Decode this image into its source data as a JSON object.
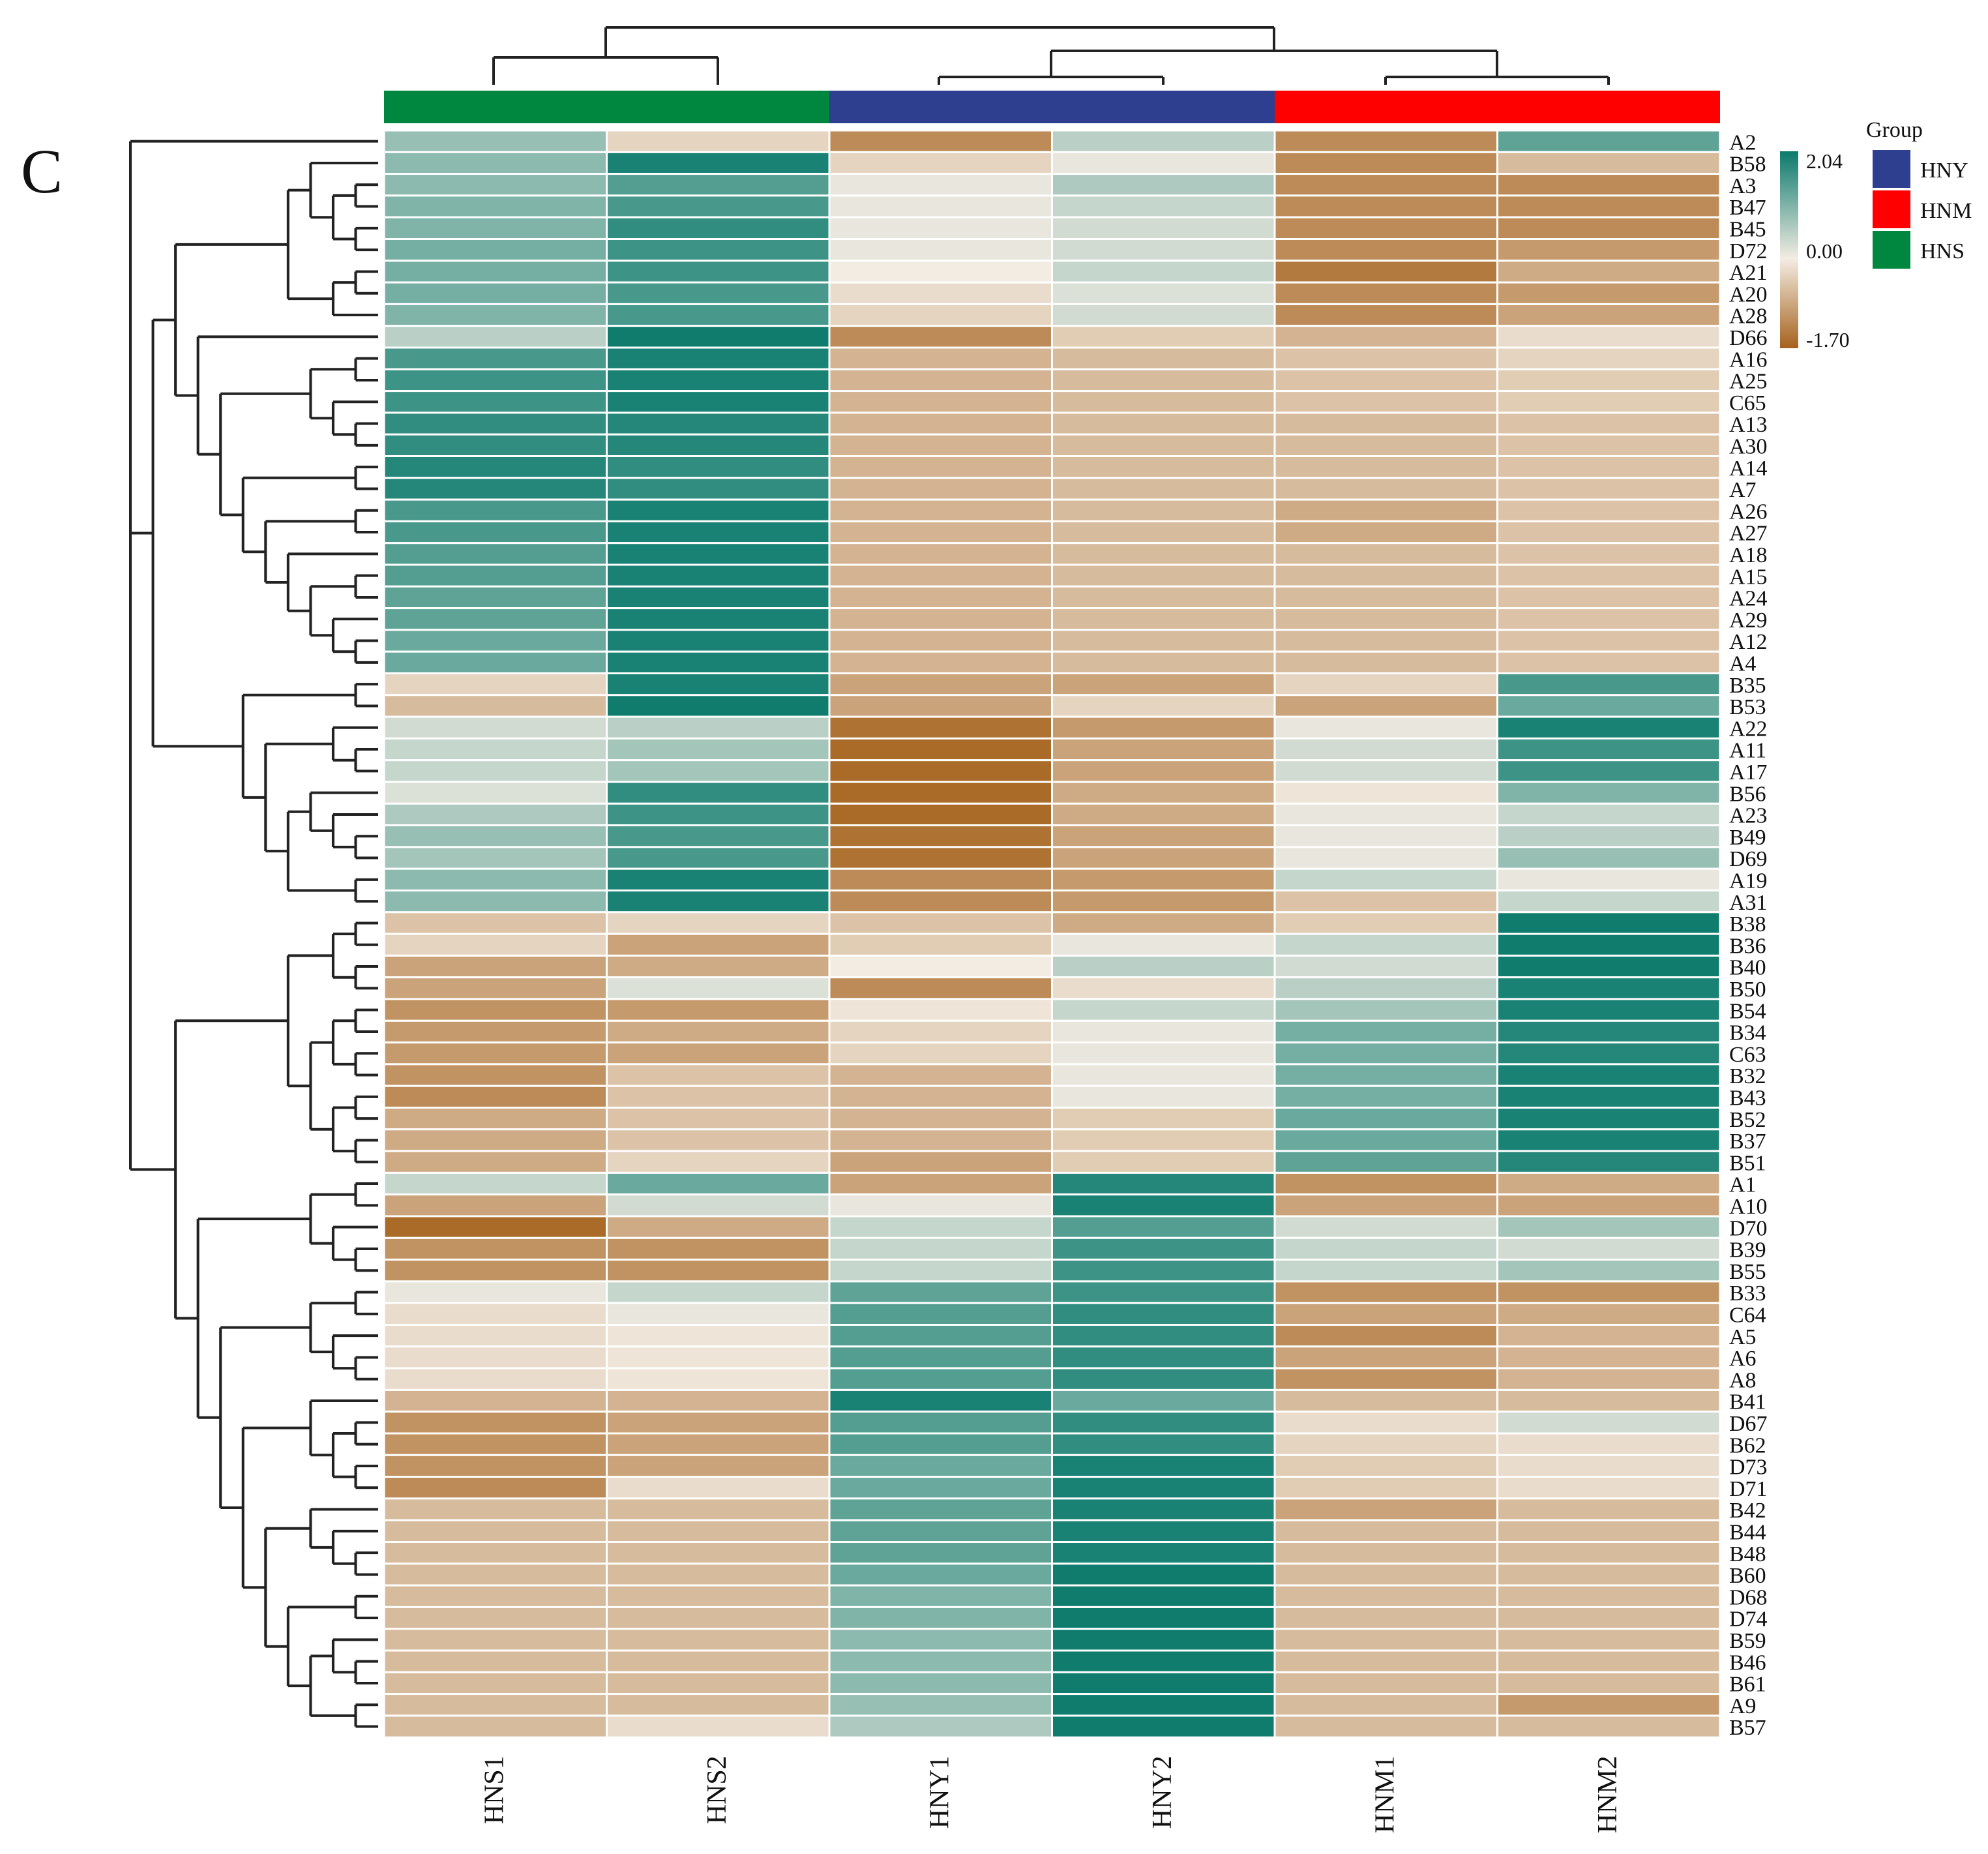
{
  "panel_label": "C",
  "chart_data": {
    "type": "heatmap",
    "columns": [
      "HNS1",
      "HNS2",
      "HNY1",
      "HNY2",
      "HNM1",
      "HNM2"
    ],
    "column_groups": [
      "HNS",
      "HNS",
      "HNY",
      "HNY",
      "HNM",
      "HNM"
    ],
    "rows": [
      "A2",
      "B58",
      "A3",
      "B47",
      "B45",
      "D72",
      "A21",
      "A20",
      "A28",
      "D66",
      "A16",
      "A25",
      "C65",
      "A13",
      "A30",
      "A14",
      "A7",
      "A26",
      "A27",
      "A18",
      "A15",
      "A24",
      "A29",
      "A12",
      "A4",
      "B35",
      "B53",
      "A22",
      "A11",
      "A17",
      "B56",
      "A23",
      "B49",
      "D69",
      "A19",
      "A31",
      "B38",
      "B36",
      "B40",
      "B50",
      "B54",
      "B34",
      "C63",
      "B32",
      "B43",
      "B52",
      "B37",
      "B51",
      "A1",
      "A10",
      "D70",
      "B39",
      "B55",
      "B33",
      "C64",
      "A5",
      "A6",
      "A8",
      "B41",
      "D67",
      "B62",
      "D73",
      "D71",
      "B42",
      "B44",
      "B48",
      "B60",
      "D68",
      "D74",
      "B59",
      "B46",
      "B61",
      "A9",
      "B57"
    ],
    "values": [
      [
        0.8,
        -0.3,
        -1.2,
        0.5,
        -1.2,
        1.3
      ],
      [
        0.9,
        1.9,
        -0.3,
        0.1,
        -1.2,
        -0.6
      ],
      [
        0.9,
        1.4,
        0.1,
        0.6,
        -1.2,
        -1.2
      ],
      [
        1.0,
        1.5,
        0.1,
        0.4,
        -1.2,
        -1.2
      ],
      [
        1.0,
        1.7,
        0.1,
        0.3,
        -1.2,
        -1.2
      ],
      [
        1.1,
        1.6,
        0.1,
        0.3,
        -1.2,
        -1.0
      ],
      [
        1.1,
        1.6,
        0.0,
        0.4,
        -1.4,
        -0.8
      ],
      [
        1.1,
        1.5,
        -0.2,
        0.2,
        -1.2,
        -1.0
      ],
      [
        1.0,
        1.5,
        -0.3,
        0.3,
        -1.2,
        -0.9
      ],
      [
        0.5,
        2.0,
        -1.2,
        -0.4,
        -0.7,
        -0.2
      ],
      [
        1.5,
        1.9,
        -0.7,
        -0.6,
        -0.5,
        -0.3
      ],
      [
        1.6,
        1.9,
        -0.7,
        -0.6,
        -0.5,
        -0.4
      ],
      [
        1.6,
        1.9,
        -0.7,
        -0.6,
        -0.5,
        -0.4
      ],
      [
        1.7,
        1.8,
        -0.7,
        -0.6,
        -0.6,
        -0.5
      ],
      [
        1.7,
        1.8,
        -0.7,
        -0.6,
        -0.6,
        -0.5
      ],
      [
        1.8,
        1.7,
        -0.7,
        -0.6,
        -0.6,
        -0.5
      ],
      [
        1.8,
        1.7,
        -0.7,
        -0.6,
        -0.6,
        -0.5
      ],
      [
        1.5,
        1.9,
        -0.7,
        -0.6,
        -0.8,
        -0.5
      ],
      [
        1.5,
        1.9,
        -0.7,
        -0.6,
        -0.8,
        -0.5
      ],
      [
        1.4,
        1.9,
        -0.7,
        -0.6,
        -0.6,
        -0.5
      ],
      [
        1.4,
        1.9,
        -0.7,
        -0.6,
        -0.6,
        -0.5
      ],
      [
        1.3,
        1.9,
        -0.7,
        -0.6,
        -0.6,
        -0.5
      ],
      [
        1.3,
        1.9,
        -0.7,
        -0.6,
        -0.6,
        -0.5
      ],
      [
        1.2,
        1.9,
        -0.7,
        -0.6,
        -0.6,
        -0.5
      ],
      [
        1.2,
        1.9,
        -0.7,
        -0.6,
        -0.6,
        -0.5
      ],
      [
        -0.3,
        1.9,
        -0.9,
        -0.9,
        -0.3,
        1.5
      ],
      [
        -0.6,
        2.0,
        -0.9,
        -0.3,
        -0.9,
        1.2
      ],
      [
        0.3,
        0.5,
        -1.5,
        -1.0,
        0.1,
        1.9
      ],
      [
        0.4,
        0.7,
        -1.6,
        -0.9,
        0.3,
        1.6
      ],
      [
        0.4,
        0.7,
        -1.6,
        -0.9,
        0.3,
        1.6
      ],
      [
        0.2,
        1.7,
        -1.6,
        -0.8,
        -0.1,
        1.0
      ],
      [
        0.6,
        1.6,
        -1.6,
        -0.8,
        0.1,
        0.4
      ],
      [
        0.8,
        1.5,
        -1.5,
        -0.9,
        0.1,
        0.5
      ],
      [
        0.7,
        1.5,
        -1.5,
        -0.9,
        0.1,
        0.8
      ],
      [
        0.9,
        1.9,
        -1.2,
        -1.0,
        0.4,
        0.1
      ],
      [
        0.9,
        1.9,
        -1.2,
        -1.0,
        -0.5,
        0.4
      ],
      [
        -0.5,
        -0.3,
        -0.5,
        -0.8,
        -0.4,
        2.0
      ],
      [
        -0.3,
        -0.9,
        -0.4,
        0.1,
        0.4,
        2.0
      ],
      [
        -0.9,
        -0.8,
        0.0,
        0.5,
        0.3,
        2.0
      ],
      [
        -0.9,
        0.2,
        -1.2,
        -0.2,
        0.5,
        1.9
      ],
      [
        -1.1,
        -1.0,
        -0.1,
        0.4,
        0.7,
        1.9
      ],
      [
        -1.0,
        -0.8,
        -0.3,
        0.1,
        1.1,
        1.8
      ],
      [
        -1.0,
        -0.9,
        -0.3,
        0.1,
        1.1,
        1.8
      ],
      [
        -1.1,
        -0.5,
        -0.7,
        0.1,
        1.1,
        1.9
      ],
      [
        -1.2,
        -0.5,
        -0.7,
        0.1,
        1.1,
        1.9
      ],
      [
        -0.8,
        -0.5,
        -0.7,
        -0.4,
        1.2,
        1.9
      ],
      [
        -0.8,
        -0.5,
        -0.7,
        -0.4,
        1.2,
        1.9
      ],
      [
        -0.8,
        -0.3,
        -0.9,
        -0.4,
        1.3,
        1.8
      ],
      [
        0.4,
        1.2,
        -0.9,
        1.8,
        -1.1,
        -0.8
      ],
      [
        -0.9,
        0.3,
        0.1,
        1.9,
        -0.9,
        -0.9
      ],
      [
        -1.6,
        -0.8,
        0.4,
        1.4,
        0.3,
        0.7
      ],
      [
        -1.1,
        -1.1,
        0.4,
        1.6,
        0.4,
        0.3
      ],
      [
        -1.1,
        -1.1,
        0.4,
        1.6,
        0.4,
        0.7
      ],
      [
        0.1,
        0.4,
        1.3,
        1.6,
        -1.1,
        -1.1
      ],
      [
        -0.2,
        0.1,
        1.4,
        1.7,
        -0.9,
        -0.8
      ],
      [
        -0.2,
        -0.1,
        1.4,
        1.7,
        -1.2,
        -0.7
      ],
      [
        -0.2,
        -0.1,
        1.4,
        1.7,
        -0.9,
        -0.7
      ],
      [
        -0.2,
        -0.1,
        1.4,
        1.7,
        -1.1,
        -0.7
      ],
      [
        -0.7,
        -0.7,
        1.9,
        1.2,
        -0.6,
        -0.6
      ],
      [
        -1.1,
        -0.9,
        1.4,
        1.7,
        -0.2,
        0.3
      ],
      [
        -1.1,
        -0.9,
        1.4,
        1.7,
        -0.3,
        -0.2
      ],
      [
        -1.1,
        -0.9,
        1.2,
        1.9,
        -0.4,
        -0.2
      ],
      [
        -1.2,
        -0.2,
        1.2,
        1.9,
        -0.4,
        -0.2
      ],
      [
        -0.6,
        -0.6,
        1.3,
        1.9,
        -0.9,
        -0.6
      ],
      [
        -0.6,
        -0.6,
        1.3,
        1.9,
        -0.6,
        -0.6
      ],
      [
        -0.6,
        -0.6,
        1.3,
        1.9,
        -0.6,
        -0.6
      ],
      [
        -0.6,
        -0.6,
        1.2,
        2.0,
        -0.6,
        -0.6
      ],
      [
        -0.6,
        -0.6,
        1.0,
        2.0,
        -0.6,
        -0.6
      ],
      [
        -0.6,
        -0.6,
        1.0,
        2.0,
        -0.6,
        -0.6
      ],
      [
        -0.6,
        -0.6,
        0.9,
        2.0,
        -0.6,
        -0.6
      ],
      [
        -0.6,
        -0.6,
        0.9,
        2.0,
        -0.6,
        -0.6
      ],
      [
        -0.6,
        -0.6,
        0.9,
        2.0,
        -0.6,
        -0.6
      ],
      [
        -0.6,
        -0.6,
        0.8,
        2.0,
        -0.6,
        -1.0
      ],
      [
        -0.6,
        -0.2,
        0.6,
        2.0,
        -0.6,
        -0.6
      ]
    ],
    "colorbar": {
      "max": 2.04,
      "mid": 0.0,
      "min": -1.7,
      "max_label": "2.04",
      "mid_label": "0.00",
      "min_label": "-1.70"
    },
    "colors": {
      "high": "#0a7a6c",
      "mid": "#f3ece3",
      "low": "#a5621c",
      "grid": "#ffffff",
      "dendrogram": "#222222"
    },
    "legend": {
      "title": "Group",
      "items": [
        {
          "label": "HNY",
          "color": "#2e3f8f"
        },
        {
          "label": "HNM",
          "color": "#ff0000"
        },
        {
          "label": "HNS",
          "color": "#00873f"
        }
      ]
    }
  }
}
